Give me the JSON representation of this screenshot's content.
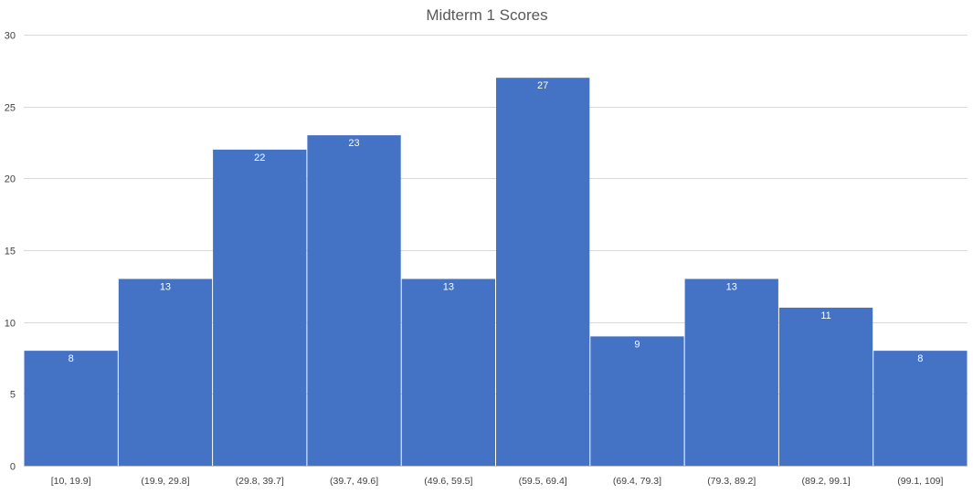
{
  "chart_data": {
    "type": "bar",
    "title": "Midterm 1 Scores",
    "categories": [
      "[10, 19.9]",
      "(19.9, 29.8]",
      "(29.8, 39.7]",
      "(39.7, 49.6]",
      "(49.6, 59.5]",
      "(59.5, 69.4]",
      "(69.4, 79.3]",
      "(79.3, 89.2]",
      "(89.2, 99.1]",
      "(99.1, 109]"
    ],
    "values": [
      8,
      13,
      22,
      23,
      13,
      27,
      9,
      13,
      11,
      8
    ],
    "xlabel": "",
    "ylabel": "",
    "ylim": [
      0,
      30
    ],
    "yticks": [
      0,
      5,
      10,
      15,
      20,
      25,
      30
    ],
    "grid": true,
    "legend": "none",
    "bar_color": "#4472C4",
    "data_labels": true
  }
}
